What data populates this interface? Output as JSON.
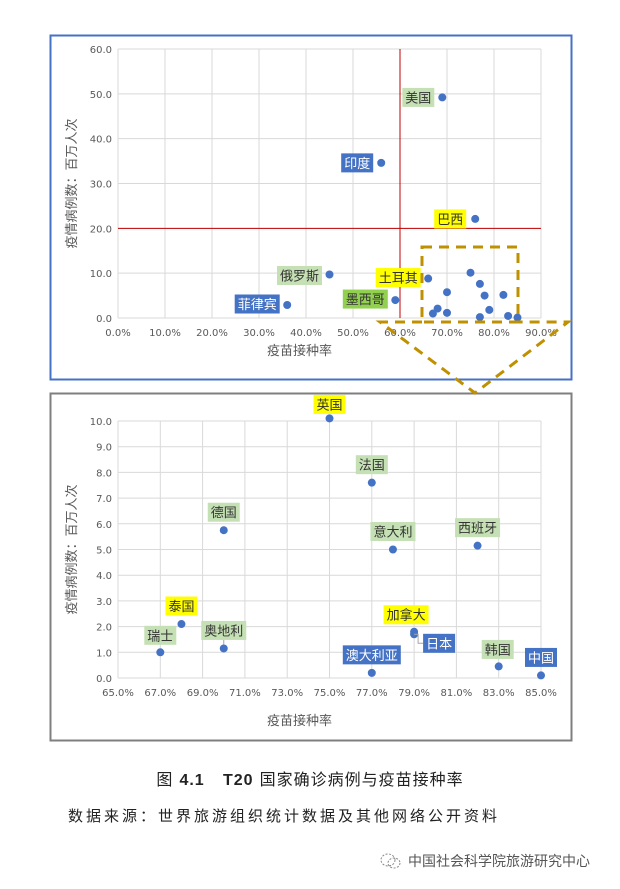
{
  "chart_data": [
    {
      "type": "scatter",
      "title": "",
      "xlabel": "疫苗接种率",
      "ylabel": "疫情病例数：百万人次",
      "xlim": [
        0,
        90
      ],
      "ylim": [
        0,
        60
      ],
      "xticks": [
        "0.0%",
        "10.0%",
        "20.0%",
        "30.0%",
        "40.0%",
        "50.0%",
        "60.0%",
        "70.0%",
        "80.0%",
        "90.0%"
      ],
      "yticks": [
        "0.0",
        "10.0",
        "20.0",
        "30.0",
        "40.0",
        "50.0",
        "60.0"
      ],
      "grid": true,
      "reference_lines": {
        "x": 60,
        "y": 20,
        "color": "#c00000"
      },
      "marker_color": "#4472c4",
      "points": [
        {
          "label": "美国",
          "x": 69,
          "y": 49.2,
          "label_style": "green"
        },
        {
          "label": "印度",
          "x": 56,
          "y": 34.6,
          "label_style": "blue"
        },
        {
          "label": "巴西",
          "x": 76,
          "y": 22.1,
          "label_style": "yellow"
        },
        {
          "label": "俄罗斯",
          "x": 45,
          "y": 9.7,
          "label_style": "green"
        },
        {
          "label": "菲律宾",
          "x": 36,
          "y": 2.9,
          "label_style": "blue"
        },
        {
          "label": "墨西哥",
          "x": 59,
          "y": 4.0,
          "label_style": "brightgreen"
        },
        {
          "label": "土耳其",
          "x": 66,
          "y": 8.8,
          "label_style": "yellow"
        },
        {
          "label": "",
          "x": 75,
          "y": 10.1
        },
        {
          "label": "",
          "x": 77,
          "y": 7.6
        },
        {
          "label": "",
          "x": 70,
          "y": 5.75
        },
        {
          "label": "",
          "x": 78,
          "y": 5.0
        },
        {
          "label": "",
          "x": 82,
          "y": 5.15
        },
        {
          "label": "",
          "x": 68,
          "y": 2.1
        },
        {
          "label": "",
          "x": 67,
          "y": 1.0
        },
        {
          "label": "",
          "x": 70,
          "y": 1.15
        },
        {
          "label": "",
          "x": 79,
          "y": 1.8
        },
        {
          "label": "",
          "x": 77,
          "y": 0.2
        },
        {
          "label": "",
          "x": 83,
          "y": 0.45
        },
        {
          "label": "",
          "x": 85,
          "y": 0.1
        }
      ]
    },
    {
      "type": "scatter",
      "title": "",
      "xlabel": "疫苗接种率",
      "ylabel": "疫情病例数：百万人次",
      "xlim": [
        65,
        85
      ],
      "ylim": [
        0,
        10
      ],
      "xticks": [
        "65.0%",
        "67.0%",
        "69.0%",
        "71.0%",
        "73.0%",
        "75.0%",
        "77.0%",
        "79.0%",
        "81.0%",
        "83.0%",
        "85.0%"
      ],
      "yticks": [
        "0.0",
        "1.0",
        "2.0",
        "3.0",
        "4.0",
        "5.0",
        "6.0",
        "7.0",
        "8.0",
        "9.0",
        "10.0"
      ],
      "grid": true,
      "marker_color": "#4472c4",
      "points": [
        {
          "label": "英国",
          "x": 75,
          "y": 10.1,
          "label_style": "yellow"
        },
        {
          "label": "法国",
          "x": 77,
          "y": 7.6,
          "label_style": "green"
        },
        {
          "label": "德国",
          "x": 70,
          "y": 5.75,
          "label_style": "green"
        },
        {
          "label": "意大利",
          "x": 78,
          "y": 5.0,
          "label_style": "green"
        },
        {
          "label": "西班牙",
          "x": 82,
          "y": 5.15,
          "label_style": "green"
        },
        {
          "label": "泰国",
          "x": 68,
          "y": 2.1,
          "label_style": "yellow"
        },
        {
          "label": "瑞士",
          "x": 67,
          "y": 1.0,
          "label_style": "green"
        },
        {
          "label": "奥地利",
          "x": 70,
          "y": 1.15,
          "label_style": "green"
        },
        {
          "label": "加拿大",
          "x": 79,
          "y": 1.8,
          "label_style": "yellow"
        },
        {
          "label": "日本",
          "x": 79,
          "y": 1.7,
          "label_style": "blue"
        },
        {
          "label": "澳大利亚",
          "x": 77,
          "y": 0.2,
          "label_style": "blue"
        },
        {
          "label": "韩国",
          "x": 83,
          "y": 0.45,
          "label_style": "green"
        },
        {
          "label": "中国",
          "x": 85,
          "y": 0.1,
          "label_style": "blue"
        }
      ]
    }
  ],
  "colors": {
    "green": "#c5e0b4",
    "yellow": "#ffff00",
    "blue": "#4472c4",
    "brightgreen": "#92d050",
    "callout": "#bf9000"
  },
  "caption": {
    "prefix": "图",
    "number": "4.1",
    "code": "T20",
    "text": "国家确诊病例与疫苗接种率"
  },
  "source": "数据来源：世界旅游组织统计数据及其他网络公开资料",
  "watermark": "中国社会科学院旅游研究中心"
}
